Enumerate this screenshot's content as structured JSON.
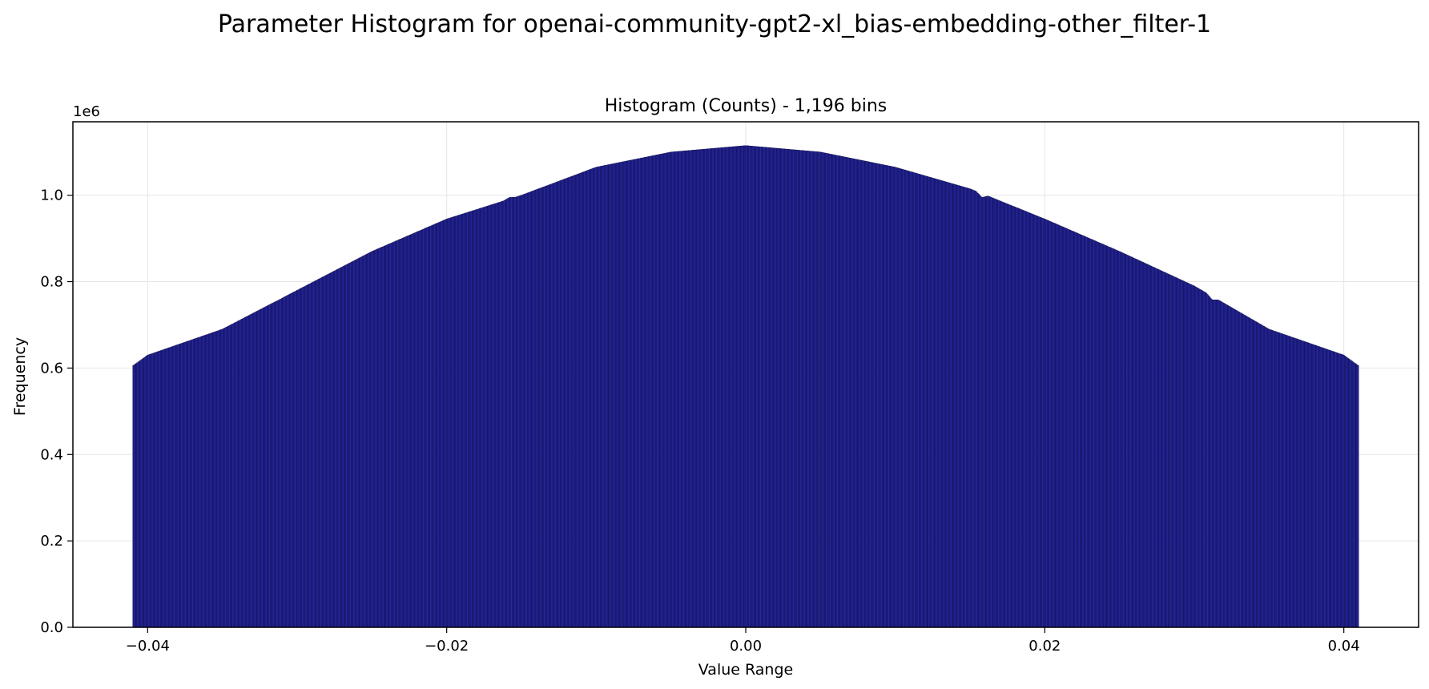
{
  "chart_data": {
    "type": "bar",
    "suptitle": "Parameter Histogram for openai-community-gpt2-xl_bias-embedding-other_filter-1",
    "title": "Histogram (Counts) - 1,196 bins",
    "xlabel": "Value Range",
    "ylabel": "Frequency",
    "y_offset_label": "1e6",
    "x_range": [
      -0.041,
      0.041
    ],
    "xlim": [
      -0.045,
      0.045
    ],
    "ylim": [
      0,
      1.17
    ],
    "y_scale_note": "values in millions (1e6)",
    "bins": 1196,
    "grid": true,
    "x_ticks": [
      -0.04,
      -0.02,
      0.0,
      0.02,
      0.04
    ],
    "x_tick_labels": [
      "−0.04",
      "−0.02",
      "0.00",
      "0.02",
      "0.04"
    ],
    "y_ticks": [
      0.0,
      0.2,
      0.4,
      0.6,
      0.8,
      1.0
    ],
    "y_tick_labels": [
      "0.0",
      "0.2",
      "0.4",
      "0.6",
      "0.8",
      "1.0"
    ],
    "series": [
      {
        "name": "Frequency",
        "x": [
          -0.041,
          -0.04,
          -0.035,
          -0.03,
          -0.025,
          -0.02,
          -0.015,
          -0.01,
          -0.005,
          0.0,
          0.005,
          0.01,
          0.015,
          0.02,
          0.025,
          0.03,
          0.035,
          0.04,
          0.041
        ],
        "values": [
          0.605,
          0.63,
          0.69,
          0.78,
          0.87,
          0.945,
          1.0,
          1.065,
          1.1,
          1.115,
          1.1,
          1.065,
          1.015,
          0.945,
          0.87,
          0.79,
          0.69,
          0.63,
          0.605
        ]
      }
    ],
    "notches": [
      {
        "x": -0.0312,
        "value": 0.758
      },
      {
        "x": -0.0158,
        "value": 0.995
      },
      {
        "x": 0.0158,
        "value": 0.995
      },
      {
        "x": 0.0312,
        "value": 0.758
      }
    ],
    "colors": {
      "bar_fill": "#2a2aa8",
      "bar_edge": "#000033",
      "grid": "#e6e6e6",
      "axis": "#000000"
    }
  }
}
